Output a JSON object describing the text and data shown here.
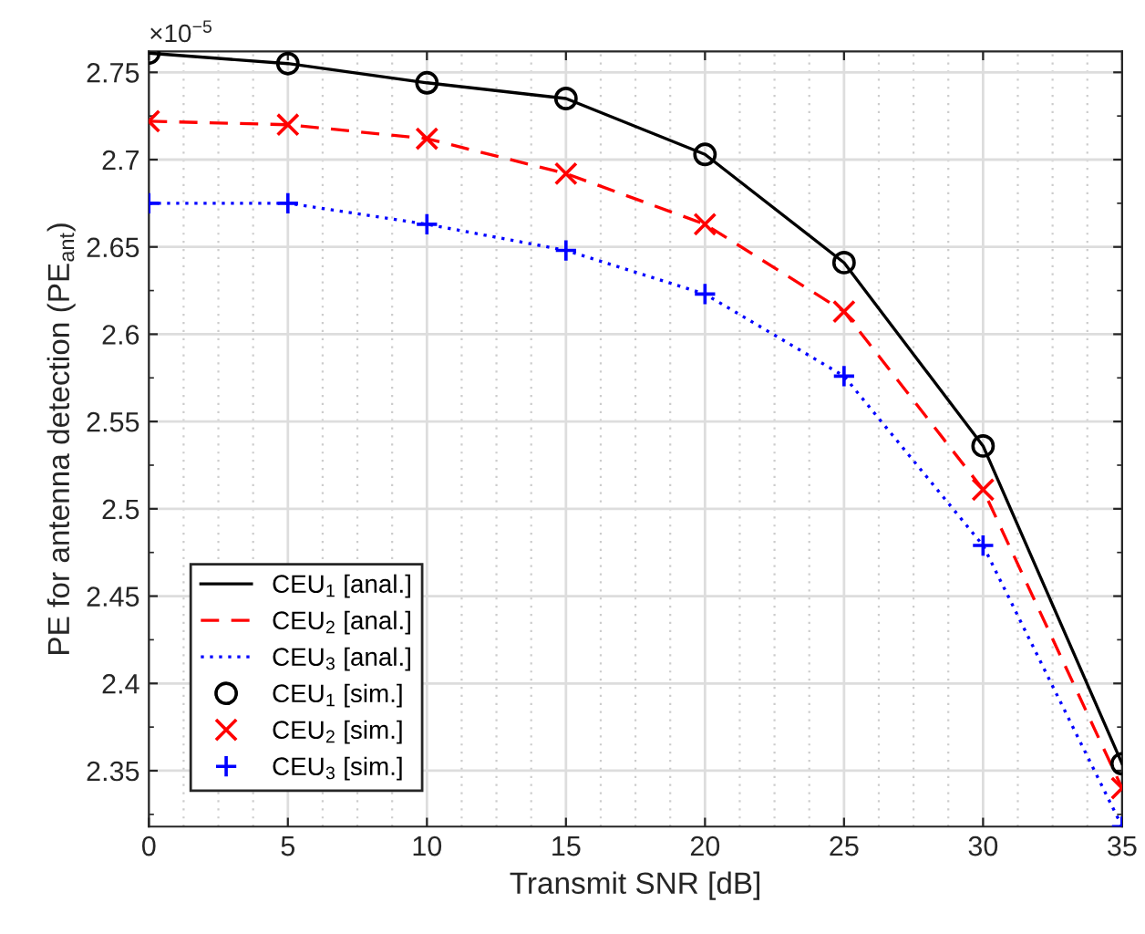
{
  "chart_data": {
    "type": "line",
    "xlabel": "Transmit SNR [dB]",
    "ylabel": "PE for antenna detection (PE$_{ant}$)",
    "x": [
      0,
      5,
      10,
      15,
      20,
      25,
      30,
      35
    ],
    "series": [
      {
        "name": "CEU$_{1}$ [anal.]",
        "color": "#000000",
        "line_style": "solid",
        "marker": "none",
        "values": [
          2.761,
          2.755,
          2.744,
          2.735,
          2.703,
          2.641,
          2.536,
          2.354
        ]
      },
      {
        "name": "CEU$_{2}$ [anal.]",
        "color": "#ff0000",
        "line_style": "dashed",
        "marker": "none",
        "values": [
          2.722,
          2.72,
          2.712,
          2.692,
          2.663,
          2.613,
          2.511,
          2.34
        ]
      },
      {
        "name": "CEU$_{3}$ [anal.]",
        "color": "#0000ff",
        "line_style": "dotted",
        "marker": "none",
        "values": [
          2.675,
          2.675,
          2.663,
          2.648,
          2.623,
          2.576,
          2.479,
          2.318
        ]
      },
      {
        "name": "CEU$_{1}$ [sim.]",
        "type": "scatter",
        "color": "#000000",
        "marker": "circle",
        "values": [
          2.761,
          2.755,
          2.744,
          2.735,
          2.703,
          2.641,
          2.536,
          2.354
        ]
      },
      {
        "name": "CEU$_{2}$ [sim.]",
        "type": "scatter",
        "color": "#ff0000",
        "marker": "cross",
        "values": [
          2.722,
          2.72,
          2.712,
          2.692,
          2.663,
          2.613,
          2.511,
          2.34
        ]
      },
      {
        "name": "CEU$_{3}$ [sim.]",
        "type": "scatter",
        "color": "#0000ff",
        "marker": "plus",
        "values": [
          2.675,
          2.675,
          2.663,
          2.648,
          2.623,
          2.576,
          2.479,
          2.318
        ]
      }
    ],
    "xlim": [
      0,
      35
    ],
    "xticks": [
      0,
      5,
      10,
      15,
      20,
      25,
      30,
      35
    ],
    "ylim": [
      2.318,
      2.762
    ],
    "yticks": [
      2.35,
      2.4,
      2.45,
      2.5,
      2.55,
      2.6,
      2.65,
      2.7,
      2.75
    ],
    "annotations": [
      "×10$^{−5}$"
    ],
    "grid": true,
    "legend": "bottom left"
  }
}
